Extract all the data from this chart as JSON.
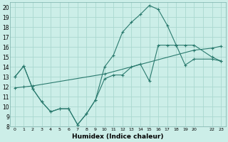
{
  "xlabel": "Humidex (Indice chaleur)",
  "bg_color": "#cceee8",
  "grid_color": "#aad8d0",
  "line_color": "#2a7a6e",
  "xlim": [
    -0.5,
    23.5
  ],
  "ylim": [
    8,
    20.5
  ],
  "yticks": [
    8,
    9,
    10,
    11,
    12,
    13,
    14,
    15,
    16,
    17,
    18,
    19,
    20
  ],
  "xtick_labels": [
    "0",
    "1",
    "2",
    "3",
    "4",
    "5",
    "6",
    "7",
    "8",
    "9",
    "10",
    "11",
    "12",
    "13",
    "14",
    "15",
    "16",
    "17",
    "18",
    "19",
    "20",
    "",
    "22",
    "23"
  ],
  "line1_x": [
    0,
    1,
    2,
    3,
    4,
    5,
    6,
    7,
    8,
    9,
    10,
    11,
    12,
    13,
    14,
    15,
    16,
    17,
    18,
    19,
    20,
    22,
    23
  ],
  "line1_y": [
    13,
    14.1,
    11.8,
    10.5,
    9.5,
    9.8,
    9.8,
    8.2,
    9.3,
    10.7,
    12.8,
    13.2,
    13.2,
    14.0,
    14.3,
    12.6,
    16.2,
    16.2,
    16.2,
    14.2,
    14.8,
    14.8,
    14.6
  ],
  "line2_x": [
    0,
    1,
    2,
    3,
    4,
    5,
    6,
    7,
    8,
    9,
    10,
    11,
    12,
    13,
    14,
    15,
    16,
    17,
    18,
    19,
    20,
    22,
    23
  ],
  "line2_y": [
    13,
    14.1,
    11.8,
    10.5,
    9.5,
    9.8,
    9.8,
    8.2,
    9.3,
    10.7,
    14.0,
    15.2,
    17.5,
    18.5,
    19.3,
    20.2,
    19.8,
    18.2,
    16.2,
    16.2,
    16.2,
    15.0,
    14.6
  ],
  "line3_x": [
    0,
    1,
    2,
    10,
    20,
    22,
    23
  ],
  "line3_y": [
    11.9,
    12.0,
    12.1,
    13.3,
    15.7,
    15.9,
    16.1
  ]
}
